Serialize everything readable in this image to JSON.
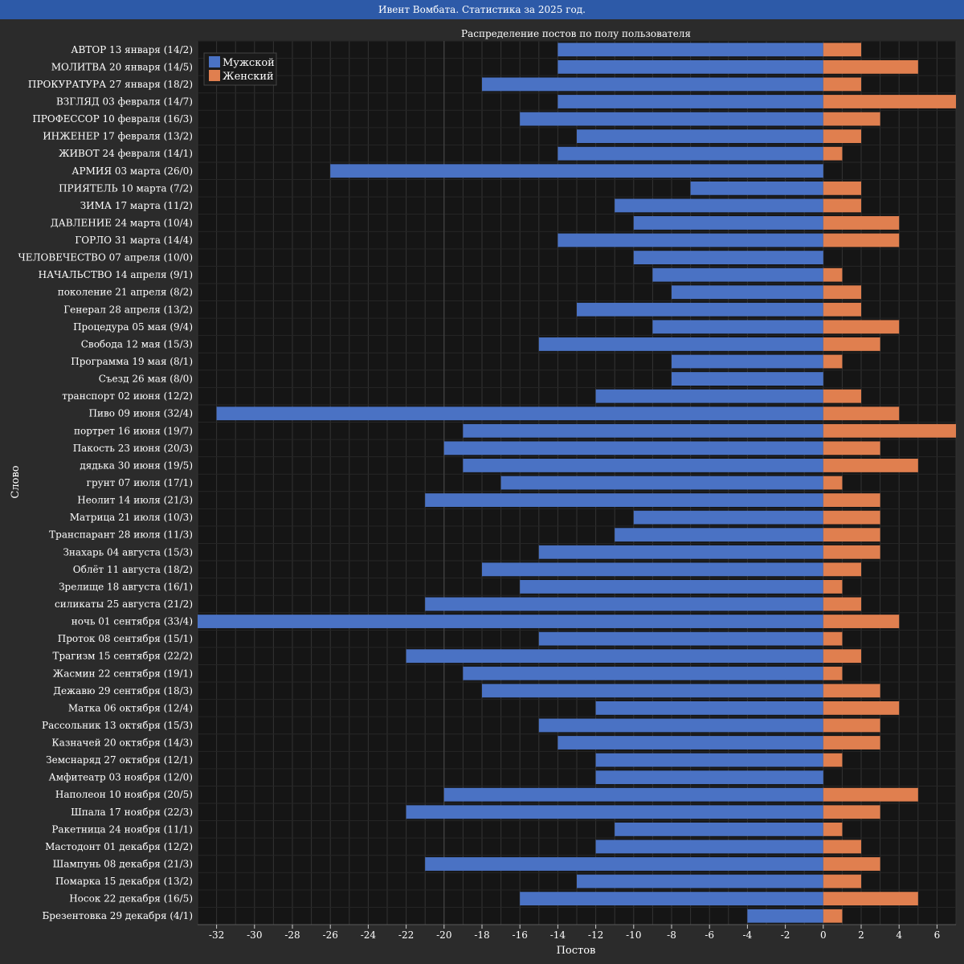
{
  "window": {
    "title": "Ивент Вомбата. Статистика за 2025 год."
  },
  "chart_data": {
    "type": "bar",
    "orientation": "horizontal",
    "title": "Распределение постов по полу пользователя",
    "xlabel": "Постов",
    "ylabel": "Слово",
    "xlim": [
      -33,
      7
    ],
    "xticks": [
      "-32",
      "-30",
      "-28",
      "-26",
      "-24",
      "-22",
      "-20",
      "-18",
      "-16",
      "-14",
      "-12",
      "-10",
      "-8",
      "-6",
      "-4",
      "-2",
      "0",
      "2",
      "4",
      "6"
    ],
    "grid": true,
    "legend_position": "top-left",
    "colors": {
      "male": "#4a72c4",
      "female": "#e07f4f",
      "background": "#151515",
      "grid": "#333333"
    },
    "categories": [
      "АВТОР 13 января (14/2)",
      "МОЛИТВА 20 января (14/5)",
      "ПРОКУРАТУРА 27 января (18/2)",
      "ВЗГЛЯД 03 февраля (14/7)",
      "ПРОФЕССОР 10 февраля (16/3)",
      "ИНЖЕНЕР 17 февраля (13/2)",
      "ЖИВОТ 24 февраля (14/1)",
      "АРМИЯ 03 марта (26/0)",
      "ПРИЯТЕЛЬ 10 марта (7/2)",
      "ЗИМА 17 марта (11/2)",
      "ДАВЛЕНИЕ 24 марта (10/4)",
      "ГОРЛО 31 марта (14/4)",
      "ЧЕЛОВЕЧЕСТВО 07 апреля (10/0)",
      "НАЧАЛЬСТВО 14 апреля (9/1)",
      "поколение 21 апреля (8/2)",
      "Генерал 28 апреля (13/2)",
      "Процедура 05 мая (9/4)",
      "Свобода 12 мая (15/3)",
      "Программа 19 мая (8/1)",
      "Съезд 26 мая (8/0)",
      "транспорт 02 июня (12/2)",
      "Пиво 09 июня (32/4)",
      "портрет 16 июня (19/7)",
      "Пакость 23 июня (20/3)",
      "дядька 30 июня (19/5)",
      "грунт 07 июля (17/1)",
      "Неолит 14 июля (21/3)",
      "Матрица 21 июля (10/3)",
      "Транспарант 28 июля (11/3)",
      "Знахарь 04 августа (15/3)",
      "Облёт 11 августа (18/2)",
      "Зрелище 18 августа (16/1)",
      "силикаты 25 августа (21/2)",
      "ночь 01 сентября (33/4)",
      "Проток 08 сентября (15/1)",
      "Трагизм 15 сентября (22/2)",
      "Жасмин 22 сентября (19/1)",
      "Дежавю 29 сентября (18/3)",
      "Матка 06 октября (12/4)",
      "Рассольник 13 октября (15/3)",
      "Казначей 20 октября (14/3)",
      "Земснаряд 27 октября (12/1)",
      "Амфитеатр 03 ноября (12/0)",
      "Наполеон 10 ноября (20/5)",
      "Шпала 17 ноября (22/3)",
      "Ракетница 24 ноября (11/1)",
      "Мастодонт 01 декабря (12/2)",
      "Шампунь 08 декабря (21/3)",
      "Помарка 15 декабря (13/2)",
      "Носок 22 декабря (16/5)",
      "Брезентовка 29 декабря (4/1)"
    ],
    "series": [
      {
        "name": "Мужской",
        "values": [
          -14,
          -14,
          -18,
          -14,
          -16,
          -13,
          -14,
          -26,
          -7,
          -11,
          -10,
          -14,
          -10,
          -9,
          -8,
          -13,
          -9,
          -15,
          -8,
          -8,
          -12,
          -32,
          -19,
          -20,
          -19,
          -17,
          -21,
          -10,
          -11,
          -15,
          -18,
          -16,
          -21,
          -33,
          -15,
          -22,
          -19,
          -18,
          -12,
          -15,
          -14,
          -12,
          -12,
          -20,
          -22,
          -11,
          -12,
          -21,
          -13,
          -16,
          -4
        ]
      },
      {
        "name": "Женский",
        "values": [
          2,
          5,
          2,
          7,
          3,
          2,
          1,
          0,
          2,
          2,
          4,
          4,
          0,
          1,
          2,
          2,
          4,
          3,
          1,
          0,
          2,
          4,
          7,
          3,
          5,
          1,
          3,
          3,
          3,
          3,
          2,
          1,
          2,
          4,
          1,
          2,
          1,
          3,
          4,
          3,
          3,
          1,
          0,
          5,
          3,
          1,
          2,
          3,
          2,
          5,
          1
        ]
      }
    ]
  }
}
